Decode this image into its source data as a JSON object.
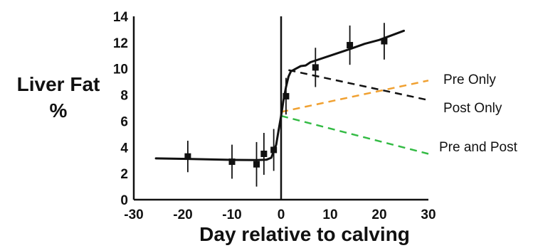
{
  "chart_data": {
    "type": "line",
    "title": "",
    "xlabel": "Day relative to calving",
    "ylabel_line1": "Liver Fat",
    "ylabel_line2": "%",
    "xlim": [
      -30,
      30
    ],
    "ylim": [
      0,
      14
    ],
    "x_ticks": [
      "-30",
      "-20",
      "-10",
      "0",
      "10",
      "20",
      "30"
    ],
    "y_ticks": [
      "0",
      "2",
      "4",
      "6",
      "8",
      "10",
      "12",
      "14"
    ],
    "vertical_reference_x": 0,
    "grid": false,
    "measured": {
      "points": [
        {
          "x": -19,
          "y": 3.3,
          "err": 1.2
        },
        {
          "x": -10,
          "y": 2.9,
          "err": 1.3
        },
        {
          "x": -5,
          "y": 2.7,
          "err": 1.7
        },
        {
          "x": -3.5,
          "y": 3.5,
          "err": 1.6
        },
        {
          "x": -1.5,
          "y": 3.8,
          "err": 1.6
        },
        {
          "x": 1,
          "y": 7.9,
          "err": 1.4
        },
        {
          "x": 7,
          "y": 10.1,
          "err": 1.5
        },
        {
          "x": 14,
          "y": 11.8,
          "err": 1.5
        },
        {
          "x": 21,
          "y": 12.1,
          "err": 1.4
        }
      ],
      "curve": [
        [
          -25.5,
          3.15
        ],
        [
          -20,
          3.12
        ],
        [
          -15,
          3.08
        ],
        [
          -10,
          3.04
        ],
        [
          -5,
          3.02
        ],
        [
          -3,
          3.05
        ],
        [
          -2,
          3.2
        ],
        [
          -1,
          4.2
        ],
        [
          -0.5,
          5.3
        ],
        [
          0,
          6.4
        ],
        [
          0.5,
          7.6
        ],
        [
          1,
          8.6
        ],
        [
          1.5,
          9.4
        ],
        [
          2,
          9.8
        ],
        [
          3,
          10.0
        ],
        [
          4,
          10.2
        ],
        [
          5,
          10.25
        ],
        [
          6,
          10.5
        ],
        [
          10,
          11.0
        ],
        [
          14,
          11.5
        ],
        [
          17,
          11.9
        ],
        [
          20,
          12.2
        ],
        [
          25,
          12.9
        ]
      ],
      "color": "#111111"
    },
    "series": [
      {
        "name": "Pre Only",
        "color": "#f0a030",
        "dash": true,
        "x": [
          0,
          30
        ],
        "y": [
          6.7,
          9.1
        ]
      },
      {
        "name": "Post Only",
        "color": "#111111",
        "dash": true,
        "x": [
          1.5,
          30
        ],
        "y": [
          9.9,
          7.6
        ]
      },
      {
        "name": "Pre and Post",
        "color": "#33bb44",
        "dash": true,
        "x": [
          0,
          30
        ],
        "y": [
          6.4,
          3.5
        ]
      }
    ]
  }
}
